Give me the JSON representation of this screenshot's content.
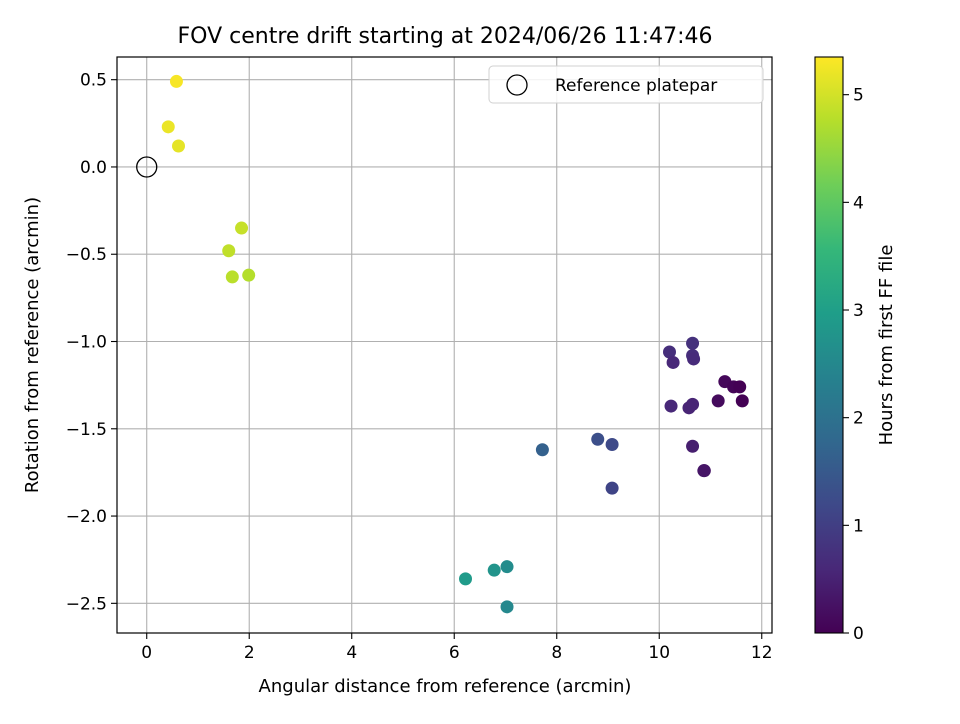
{
  "chart_data": {
    "type": "scatter",
    "title": "FOV centre drift starting at 2024/06/26 11:47:46",
    "xlabel": "Angular distance from reference (arcmin)",
    "ylabel": "Rotation from reference (arcmin)",
    "xlim": [
      -0.58,
      12.2
    ],
    "ylim": [
      -2.67,
      0.63
    ],
    "xticks": [
      0,
      2,
      4,
      6,
      8,
      10,
      12
    ],
    "xtick_labels": [
      "0",
      "2",
      "4",
      "6",
      "8",
      "10",
      "12"
    ],
    "yticks": [
      0.5,
      0.0,
      -0.5,
      -1.0,
      -1.5,
      -2.0,
      -2.5
    ],
    "ytick_labels": [
      "0.5",
      "0.0",
      "−0.5",
      "−1.0",
      "−1.5",
      "−2.0",
      "−2.5"
    ],
    "grid": true,
    "legend": {
      "placement": "top-right",
      "entries": [
        {
          "label": "Reference platepar",
          "marker": "open-circle",
          "x": 0.0,
          "y": 0.0
        }
      ]
    },
    "colorbar": {
      "label": "Hours from first FF file",
      "range": [
        0,
        5.35
      ],
      "ticks": [
        0,
        1,
        2,
        3,
        4,
        5
      ],
      "tick_labels": [
        "0",
        "1",
        "2",
        "3",
        "4",
        "5"
      ],
      "colormap": "viridis",
      "stops": [
        "#440154",
        "#482878",
        "#3e4989",
        "#31688e",
        "#26828e",
        "#1f9e89",
        "#35b779",
        "#6ece58",
        "#b5de2b",
        "#fde725"
      ]
    },
    "points": [
      {
        "x": 0.58,
        "y": 0.49,
        "hours": 5.3
      },
      {
        "x": 0.42,
        "y": 0.23,
        "hours": 5.2
      },
      {
        "x": 0.62,
        "y": 0.12,
        "hours": 5.15
      },
      {
        "x": 1.85,
        "y": -0.35,
        "hours": 4.9
      },
      {
        "x": 1.6,
        "y": -0.48,
        "hours": 4.85
      },
      {
        "x": 1.67,
        "y": -0.63,
        "hours": 4.8
      },
      {
        "x": 1.99,
        "y": -0.62,
        "hours": 4.75
      },
      {
        "x": 10.65,
        "y": -1.01,
        "hours": 0.75
      },
      {
        "x": 10.2,
        "y": -1.06,
        "hours": 0.7
      },
      {
        "x": 10.65,
        "y": -1.08,
        "hours": 0.7
      },
      {
        "x": 10.67,
        "y": -1.1,
        "hours": 0.65
      },
      {
        "x": 10.27,
        "y": -1.12,
        "hours": 0.6
      },
      {
        "x": 11.28,
        "y": -1.23,
        "hours": 0.1
      },
      {
        "x": 11.45,
        "y": -1.26,
        "hours": 0.05
      },
      {
        "x": 11.57,
        "y": -1.26,
        "hours": 0.0
      },
      {
        "x": 11.15,
        "y": -1.34,
        "hours": 0.15
      },
      {
        "x": 11.62,
        "y": -1.34,
        "hours": 0.0
      },
      {
        "x": 10.65,
        "y": -1.36,
        "hours": 0.55
      },
      {
        "x": 10.23,
        "y": -1.37,
        "hours": 0.6
      },
      {
        "x": 10.58,
        "y": -1.38,
        "hours": 0.55
      },
      {
        "x": 10.65,
        "y": -1.6,
        "hours": 0.45
      },
      {
        "x": 10.87,
        "y": -1.74,
        "hours": 0.35
      },
      {
        "x": 10.88,
        "y": -1.74,
        "hours": 0.3
      },
      {
        "x": 7.72,
        "y": -1.62,
        "hours": 1.65
      },
      {
        "x": 8.8,
        "y": -1.56,
        "hours": 1.3
      },
      {
        "x": 9.08,
        "y": -1.59,
        "hours": 1.2
      },
      {
        "x": 9.08,
        "y": -1.84,
        "hours": 1.1
      },
      {
        "x": 6.22,
        "y": -2.36,
        "hours": 2.9
      },
      {
        "x": 6.78,
        "y": -2.31,
        "hours": 2.75
      },
      {
        "x": 7.03,
        "y": -2.29,
        "hours": 2.6
      },
      {
        "x": 7.03,
        "y": -2.52,
        "hours": 2.5
      }
    ]
  }
}
